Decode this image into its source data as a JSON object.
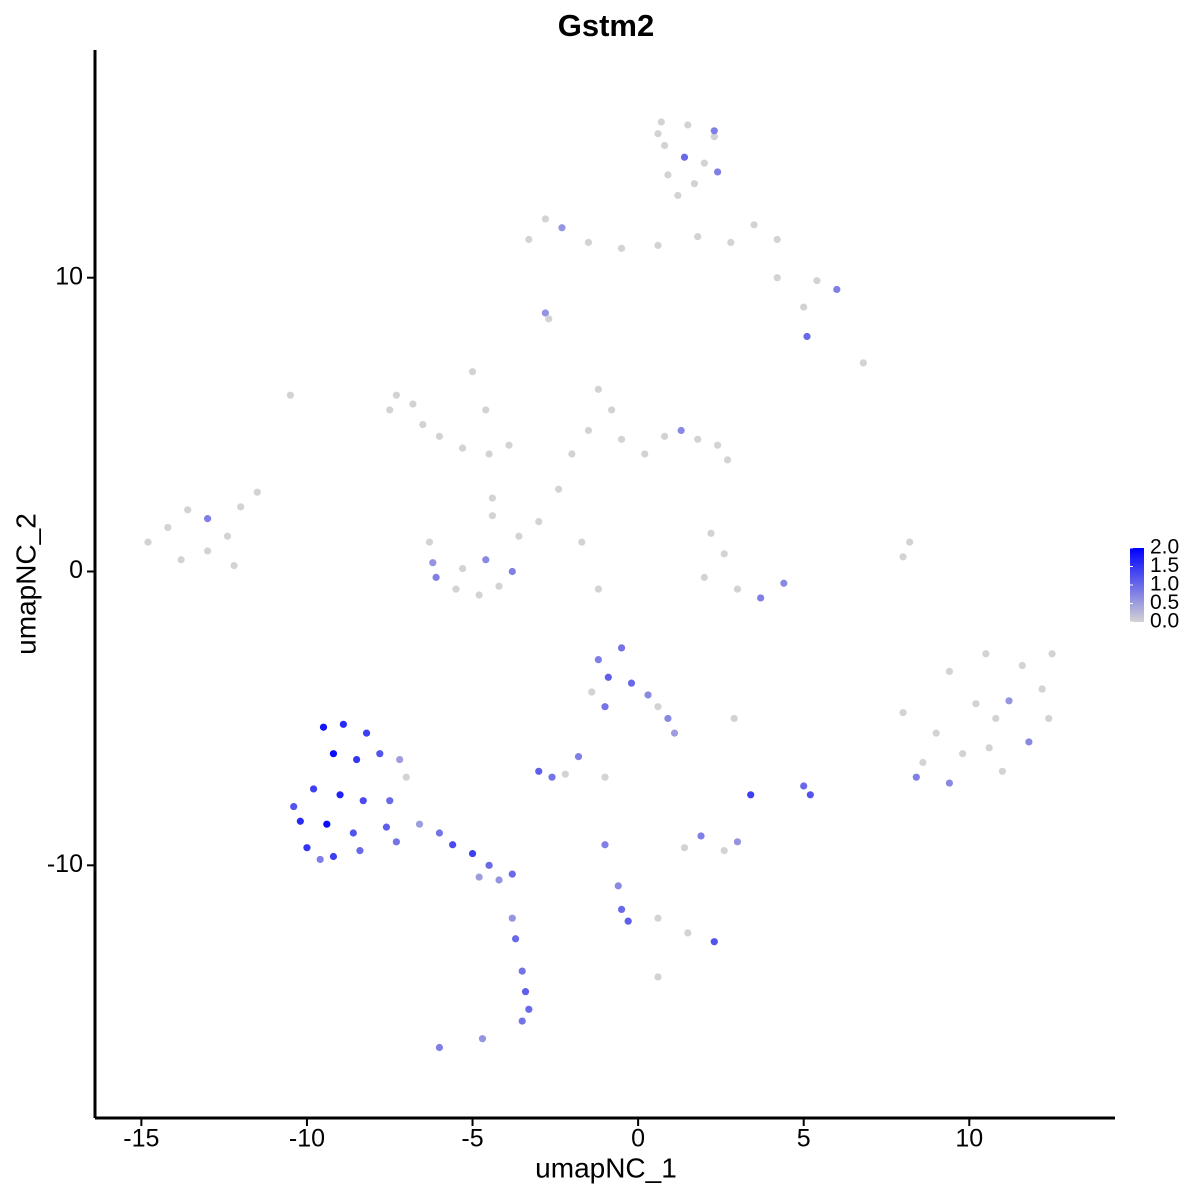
{
  "chart_data": {
    "type": "scatter",
    "title": "Gstm2",
    "xlabel": "umapNC_1",
    "ylabel": "umapNC_2",
    "xlim": [
      -16.4,
      14.4
    ],
    "ylim": [
      -18.6,
      17.75
    ],
    "xticks": [
      -15,
      -10,
      -5,
      0,
      5,
      10
    ],
    "yticks": [
      -10,
      0,
      10
    ],
    "color_low": "#d3d3d3",
    "color_high": "#0000ff",
    "clim": [
      0,
      2
    ],
    "cticks": [
      {
        "value": 0,
        "label": "0.0"
      },
      {
        "value": 0.5,
        "label": "0.5"
      },
      {
        "value": 1,
        "label": "1.0"
      },
      {
        "value": 1.5,
        "label": "1.5"
      },
      {
        "value": 2,
        "label": "2.0"
      }
    ],
    "x": [
      0.7,
      1.5,
      2.3,
      0.8,
      1.4,
      2.0,
      0.9,
      1.7,
      2.4,
      1.2,
      0.6,
      2.3,
      -2.8,
      -2.3,
      -3.3,
      -1.5,
      -0.5,
      0.6,
      1.8,
      2.8,
      3.5,
      4.2,
      4.2,
      5.4,
      5.0,
      6.0,
      5.1,
      6.8,
      -2.8,
      -2.7,
      -7.3,
      -7.5,
      -6.8,
      -6.5,
      -6.0,
      -5.3,
      -4.5,
      -5.0,
      -4.6,
      -3.9,
      -4.4,
      -10.5,
      -1.2,
      -0.8,
      -1.5,
      -0.5,
      0.2,
      0.8,
      1.3,
      1.8,
      2.4,
      2.7,
      -2.0,
      -2.4,
      -3.0,
      -1.7,
      -14.8,
      -14.2,
      -13.6,
      -13.0,
      -12.4,
      -13.8,
      -13.0,
      -12.2,
      -11.5,
      -12.0,
      -6.3,
      -6.2,
      -6.1,
      -5.5,
      -4.8,
      -4.2,
      -3.8,
      -3.6,
      -4.6,
      -5.3,
      -4.4,
      -1.2,
      2.2,
      2.6,
      2.0,
      3.0,
      3.7,
      4.4,
      8.0,
      8.2,
      8.0,
      8.6,
      8.4,
      9.0,
      9.4,
      9.8,
      10.2,
      10.5,
      10.8,
      11.0,
      11.2,
      11.6,
      11.8,
      12.2,
      12.5,
      12.4,
      9.4,
      10.6,
      -9.5,
      -8.9,
      -8.2,
      -9.2,
      -8.5,
      -7.8,
      -9.8,
      -9.0,
      -8.3,
      -7.5,
      -10.2,
      -9.4,
      -8.6,
      -7.6,
      -10.0,
      -9.2,
      -8.4,
      -7.3,
      -10.4,
      -7.0,
      -7.2,
      -9.6,
      -6.6,
      -6.0,
      -5.6,
      -5.0,
      -4.5,
      -4.2,
      -3.8,
      -4.8,
      -3.8,
      -3.7,
      -3.5,
      -3.4,
      -3.3,
      -3.5,
      -6.0,
      -4.7,
      -1.2,
      -0.5,
      -0.9,
      -0.2,
      -1.4,
      0.3,
      0.6,
      0.9,
      1.1,
      -1.0,
      -3.0,
      -2.6,
      -2.2,
      -1.8,
      -1.0,
      3.4,
      5.0,
      5.2,
      2.9,
      1.4,
      1.9,
      2.6,
      3.0,
      -1.0,
      -0.6,
      -0.5,
      -0.3,
      0.6,
      1.5,
      2.3,
      0.6
    ],
    "y": [
      15.3,
      15.2,
      14.8,
      14.5,
      14.1,
      13.9,
      13.5,
      13.2,
      13.6,
      12.8,
      14.9,
      15.0,
      12.0,
      11.7,
      11.3,
      11.2,
      11.0,
      11.1,
      11.4,
      11.2,
      11.8,
      11.3,
      10.0,
      9.9,
      9.0,
      9.6,
      8.0,
      7.1,
      8.8,
      8.6,
      6.0,
      5.5,
      5.7,
      5.0,
      4.6,
      4.2,
      4.0,
      6.8,
      5.5,
      4.3,
      2.5,
      6.0,
      6.2,
      5.5,
      4.8,
      4.5,
      4.0,
      4.6,
      4.8,
      4.5,
      4.3,
      3.8,
      4.0,
      2.8,
      1.7,
      1.0,
      1.0,
      1.5,
      2.1,
      1.8,
      1.2,
      0.4,
      0.7,
      0.2,
      2.7,
      2.2,
      1.0,
      0.3,
      -0.2,
      -0.6,
      -0.8,
      -0.5,
      0.0,
      1.2,
      0.4,
      0.1,
      1.9,
      -0.6,
      1.3,
      0.6,
      -0.2,
      -0.6,
      -0.9,
      -0.4,
      0.5,
      1.0,
      -4.8,
      -6.5,
      -7.0,
      -5.5,
      -3.4,
      -6.2,
      -4.5,
      -2.8,
      -5.0,
      -6.8,
      -4.4,
      -3.2,
      -5.8,
      -4.0,
      -2.8,
      -5.0,
      -7.2,
      -6.0,
      -5.3,
      -5.2,
      -5.5,
      -6.2,
      -6.4,
      -6.2,
      -7.4,
      -7.6,
      -7.8,
      -7.8,
      -8.5,
      -8.6,
      -8.9,
      -8.7,
      -9.4,
      -9.7,
      -9.5,
      -9.2,
      -8.0,
      -7.0,
      -6.4,
      -9.8,
      -8.6,
      -8.9,
      -9.3,
      -9.6,
      -10.0,
      -10.5,
      -10.3,
      -10.4,
      -11.8,
      -12.5,
      -13.6,
      -14.3,
      -14.9,
      -15.3,
      -16.2,
      -15.9,
      -3.0,
      -2.6,
      -3.6,
      -3.8,
      -4.1,
      -4.2,
      -4.6,
      -5.0,
      -5.5,
      -4.6,
      -6.8,
      -7.0,
      -6.9,
      -6.3,
      -7.0,
      -7.6,
      -7.3,
      -7.6,
      -5.0,
      -9.4,
      -9.0,
      -9.5,
      -9.2,
      -9.3,
      -10.7,
      -11.5,
      -11.9,
      -11.8,
      -12.3,
      -12.6,
      -13.8
    ],
    "values": [
      0,
      0,
      0,
      0,
      1.0,
      0,
      0,
      0,
      0.8,
      0,
      0,
      0.8,
      0,
      0.6,
      0,
      0,
      0,
      0,
      0,
      0,
      0,
      0,
      0,
      0,
      0,
      0.8,
      1.0,
      0,
      0.6,
      0,
      0,
      0,
      0,
      0,
      0,
      0,
      0,
      0,
      0,
      0,
      0,
      0,
      0,
      0,
      0,
      0,
      0,
      0,
      0.7,
      0,
      0,
      0,
      0,
      0,
      0,
      0,
      0,
      0,
      0,
      0.8,
      0,
      0,
      0,
      0,
      0,
      0,
      0,
      0.6,
      0.8,
      0,
      0,
      0,
      0.8,
      0,
      0.7,
      0,
      0,
      0,
      0,
      0,
      0,
      0,
      0.8,
      0.7,
      0,
      0,
      0,
      0,
      0.8,
      0,
      0,
      0,
      0,
      0,
      0,
      0,
      0.6,
      0,
      0.7,
      0,
      0,
      0,
      0.7,
      0,
      1.8,
      1.6,
      1.4,
      1.9,
      1.5,
      1.2,
      1.4,
      1.7,
      1.3,
      1.0,
      1.6,
      1.9,
      1.2,
      1.1,
      1.5,
      1.4,
      1.0,
      0.9,
      1.2,
      0,
      0.5,
      0.8,
      0.5,
      0.9,
      1.3,
      1.4,
      1.0,
      0.6,
      1.0,
      0.5,
      0.6,
      1.0,
      0.9,
      1.1,
      1.0,
      0.9,
      0.8,
      0.6,
      0.8,
      0.9,
      1.1,
      1.0,
      0,
      0.7,
      0,
      0.7,
      0.5,
      0.9,
      1.1,
      0.9,
      0,
      0.8,
      0,
      1.4,
      1.0,
      1.2,
      0,
      0,
      0.8,
      0,
      0.6,
      0.8,
      0.7,
      1.0,
      1.1,
      0,
      0,
      1.2,
      0
    ]
  }
}
